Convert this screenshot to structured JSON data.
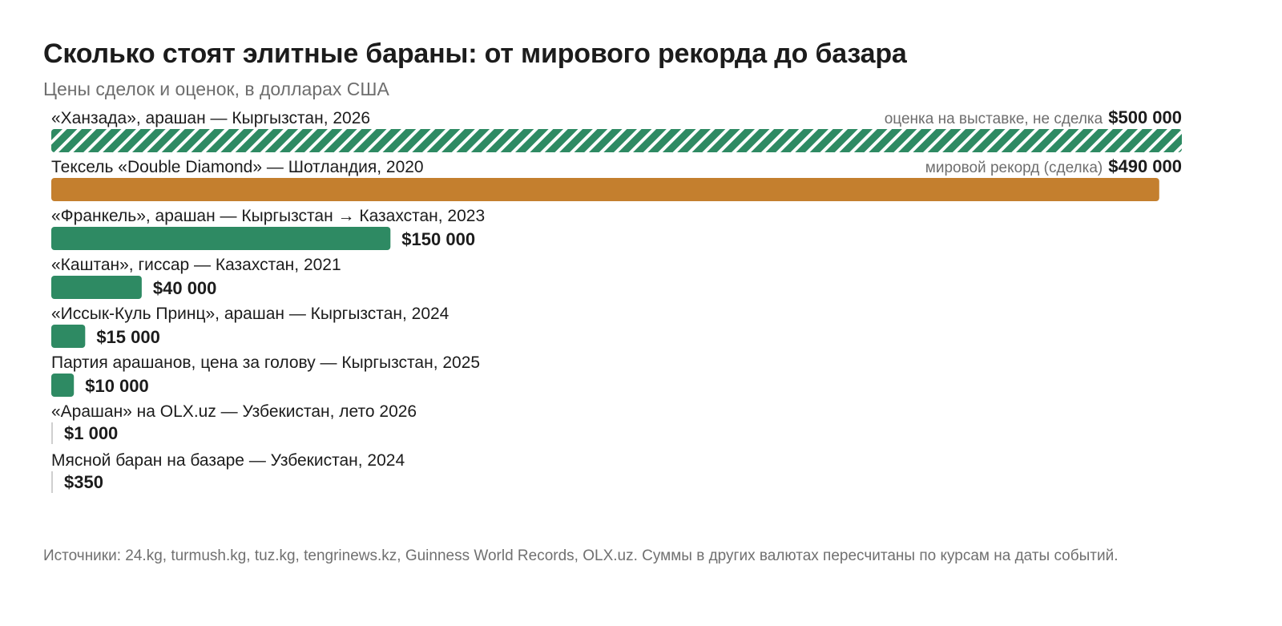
{
  "title": "Сколько стоят элитные бараны: от мирового рекорда до базара",
  "subtitle": "Цены сделок и оценок, в долларах США",
  "source": "Источники: 24.kg, turmush.kg, tuz.kg, tengrinews.kz, Guinness World Records, OLX.uz. Суммы в других валютах пересчитаны по курсам на даты событий.",
  "colors": {
    "green": "#2e8a63",
    "orange": "#c47f2e",
    "hatch_bg": "#ffffff",
    "thin_bar": "#cfcfcf",
    "text": "#1c1c1c",
    "muted": "#6e6e6e"
  },
  "chart_data": {
    "type": "bar",
    "orientation": "horizontal",
    "unit": "USD",
    "xlim": [
      0,
      500000
    ],
    "grid": false,
    "legend": "none",
    "categories": [
      "«Ханзада», арашан — Кыргызстан, 2026",
      "Тексель «Double Diamond» — Шотландия, 2020",
      "«Франкель», арашан — Кыргызстан → Казахстан, 2023",
      "«Каштан», гиссар — Казахстан, 2021",
      "«Иссык-Куль Принц», арашан — Кыргызстан, 2024",
      "Партия арашанов, цена за голову — Кыргызстан, 2025",
      "«Арашан» на OLX.uz — Узбекистан, лето 2026",
      "Мясной баран на базаре — Узбекистан, 2024"
    ],
    "values": [
      500000,
      490000,
      150000,
      40000,
      15000,
      10000,
      1000,
      350
    ],
    "value_labels": [
      "$500 000",
      "$490 000",
      "$150 000",
      "$40 000",
      "$15 000",
      "$10 000",
      "$1 000",
      "$350"
    ],
    "notes": [
      "оценка на выставке, не сделка",
      "мировой рекорд (сделка)",
      "",
      "",
      "",
      "",
      "",
      ""
    ],
    "styles": [
      "hatched",
      "orange",
      "green",
      "green",
      "green",
      "green",
      "thin",
      "thin"
    ]
  }
}
